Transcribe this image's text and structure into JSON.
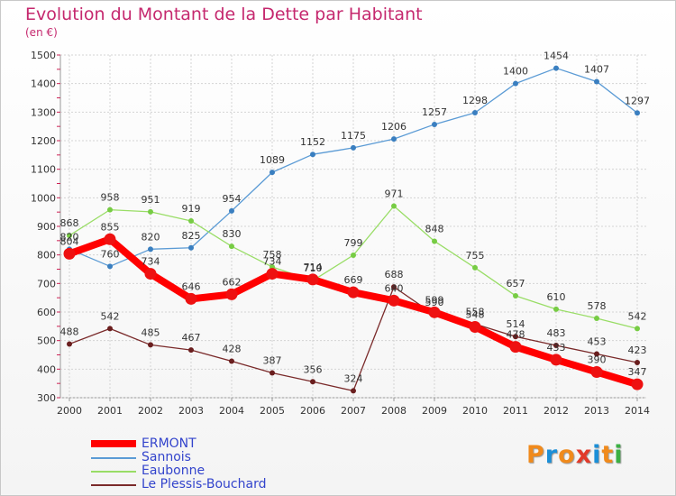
{
  "title": "Evolution du Montant de la Dette par Habitant",
  "unit_label": "(en €)",
  "logo": {
    "text": [
      "P",
      "r",
      "o",
      "x",
      "i",
      "t",
      "i"
    ],
    "colors": [
      "#f08a1c",
      "#1b8fd8",
      "#f08a1c",
      "#e23a2a",
      "#1b8fd8",
      "#f08a1c",
      "#3cb043"
    ]
  },
  "chart_data": {
    "type": "line",
    "title": "Evolution du Montant de la Dette par Habitant",
    "ylabel": "(en €)",
    "xlabel": "",
    "x": [
      "2000",
      "2001",
      "2002",
      "2003",
      "2004",
      "2005",
      "2006",
      "2007",
      "2008",
      "2009",
      "2010",
      "2011",
      "2012",
      "2013",
      "2014"
    ],
    "ylim": [
      300,
      1500
    ],
    "yticks": [
      300,
      400,
      500,
      600,
      700,
      800,
      900,
      1000,
      1100,
      1200,
      1300,
      1400,
      1500
    ],
    "grid": true,
    "legend_position": "bottom-left",
    "series": [
      {
        "name": "Sannois",
        "color": "#5b9bd5",
        "point": "#3a7fc0",
        "values": [
          820,
          760,
          820,
          825,
          954,
          1089,
          1152,
          1175,
          1206,
          1257,
          1298,
          1400,
          1454,
          1407,
          1297
        ],
        "labels": [
          "820",
          "760",
          "820",
          "825",
          "954",
          "1089",
          "1152",
          "1175",
          "1206",
          "1257",
          "1298",
          "1400",
          "1454",
          "1407",
          "1297"
        ]
      },
      {
        "name": "Eaubonne",
        "color": "#99dd66",
        "point": "#77cc44",
        "values": [
          868,
          958,
          951,
          919,
          830,
          758,
          710,
          799,
          971,
          848,
          755,
          657,
          610,
          578,
          542
        ],
        "labels": [
          "868",
          "958",
          "951",
          "919",
          "830",
          "758",
          "710",
          "799",
          "971",
          "848",
          "755",
          "657",
          "610",
          "578",
          "542"
        ]
      },
      {
        "name": "Le Plessis-Bouchard",
        "color": "#7a2a2a",
        "point": "#6a1e1e",
        "values": [
          488,
          542,
          485,
          467,
          428,
          387,
          356,
          324,
          688,
          590,
          558,
          514,
          483,
          453,
          423
        ],
        "labels": [
          "488",
          "542",
          "485",
          "467",
          "428",
          "387",
          "356",
          "324",
          "688",
          "590",
          "558",
          "514",
          "483",
          "453",
          "423"
        ]
      },
      {
        "name": "ERMONT",
        "color": "#ff0000",
        "point": "#ee1111",
        "values": [
          804,
          855,
          734,
          646,
          662,
          734,
          714,
          669,
          640,
          599,
          548,
          478,
          433,
          390,
          347
        ],
        "labels": [
          "804",
          "855",
          "734",
          "646",
          "662",
          "734",
          "714",
          "669",
          "640",
          "599",
          "548",
          "478",
          "433",
          "390",
          "347"
        ]
      }
    ]
  },
  "legend": [
    {
      "name": "ERMONT",
      "color": "#ff0000",
      "thick": true
    },
    {
      "name": "Sannois",
      "color": "#5b9bd5",
      "thick": false
    },
    {
      "name": "Eaubonne",
      "color": "#99dd66",
      "thick": false
    },
    {
      "name": "Le Plessis-Bouchard",
      "color": "#7a2a2a",
      "thick": false
    }
  ]
}
